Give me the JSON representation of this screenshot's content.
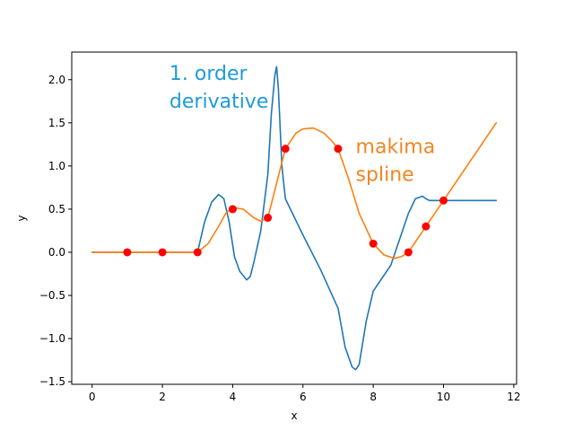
{
  "chart_data": {
    "type": "line",
    "xlabel": "x",
    "ylabel": "y",
    "xlim": [
      -0.58,
      12.08
    ],
    "ylim": [
      -1.53,
      2.32
    ],
    "grid": false,
    "x_ticks": [
      0,
      2,
      4,
      6,
      8,
      10,
      12
    ],
    "x_tick_labels": [
      "0",
      "2",
      "4",
      "6",
      "8",
      "10",
      "12"
    ],
    "y_ticks": [
      -1.5,
      -1.0,
      -0.5,
      0.0,
      0.5,
      1.0,
      1.5,
      2.0
    ],
    "y_tick_labels": [
      "−1.5",
      "−1.0",
      "−0.5",
      "0.0",
      "0.5",
      "1.0",
      "1.5",
      "2.0"
    ],
    "annotations": [
      {
        "lines": [
          "1. order",
          "derivative"
        ],
        "color": "#1f9bd7",
        "x": 2.2,
        "y": 2.0
      },
      {
        "lines": [
          "makima",
          "spline"
        ],
        "color": "#f28522",
        "x": 7.5,
        "y": 1.15
      }
    ],
    "series": [
      {
        "color": "#1f77b4",
        "x": [
          0,
          3.0,
          3.2,
          3.4,
          3.6,
          3.75,
          3.9,
          4.05,
          4.2,
          4.4,
          4.5,
          4.6,
          4.8,
          5.0,
          5.1,
          5.2,
          5.25,
          5.3,
          5.4,
          5.5,
          6.0,
          6.5,
          7.0,
          7.2,
          7.4,
          7.5,
          7.6,
          7.8,
          8.0,
          8.5,
          9.0,
          9.2,
          9.4,
          9.5,
          9.6,
          10.0,
          11.5
        ],
        "y": [
          0,
          0,
          0.35,
          0.58,
          0.67,
          0.62,
          0.35,
          -0.05,
          -0.22,
          -0.32,
          -0.28,
          -0.12,
          0.25,
          0.9,
          1.6,
          2.05,
          2.15,
          1.9,
          1.0,
          0.62,
          0.2,
          -0.2,
          -0.65,
          -1.1,
          -1.33,
          -1.36,
          -1.3,
          -0.8,
          -0.45,
          -0.15,
          0.45,
          0.62,
          0.65,
          0.62,
          0.6,
          0.6,
          0.6
        ]
      },
      {
        "color": "#ff7f0e",
        "x": [
          0,
          3.0,
          3.3,
          3.6,
          3.8,
          4.0,
          4.3,
          4.6,
          4.8,
          5.0,
          5.25,
          5.5,
          5.8,
          6.0,
          6.3,
          6.6,
          6.8,
          7.0,
          7.3,
          7.6,
          8.0,
          8.3,
          8.6,
          8.8,
          9.0,
          9.5,
          10.0,
          11.5
        ],
        "y": [
          0,
          0,
          0.1,
          0.3,
          0.45,
          0.52,
          0.5,
          0.4,
          0.36,
          0.4,
          0.8,
          1.2,
          1.38,
          1.43,
          1.44,
          1.38,
          1.3,
          1.2,
          0.85,
          0.45,
          0.1,
          -0.03,
          -0.07,
          -0.05,
          0.0,
          0.3,
          0.6,
          1.5
        ]
      }
    ],
    "points": {
      "color": "#ff0000",
      "x": [
        1,
        2,
        3,
        4,
        5,
        5.5,
        7,
        8,
        9,
        9.5,
        10
      ],
      "y": [
        0,
        0,
        0,
        0.5,
        0.4,
        1.2,
        1.2,
        0.1,
        0,
        0.3,
        0.6
      ]
    }
  }
}
